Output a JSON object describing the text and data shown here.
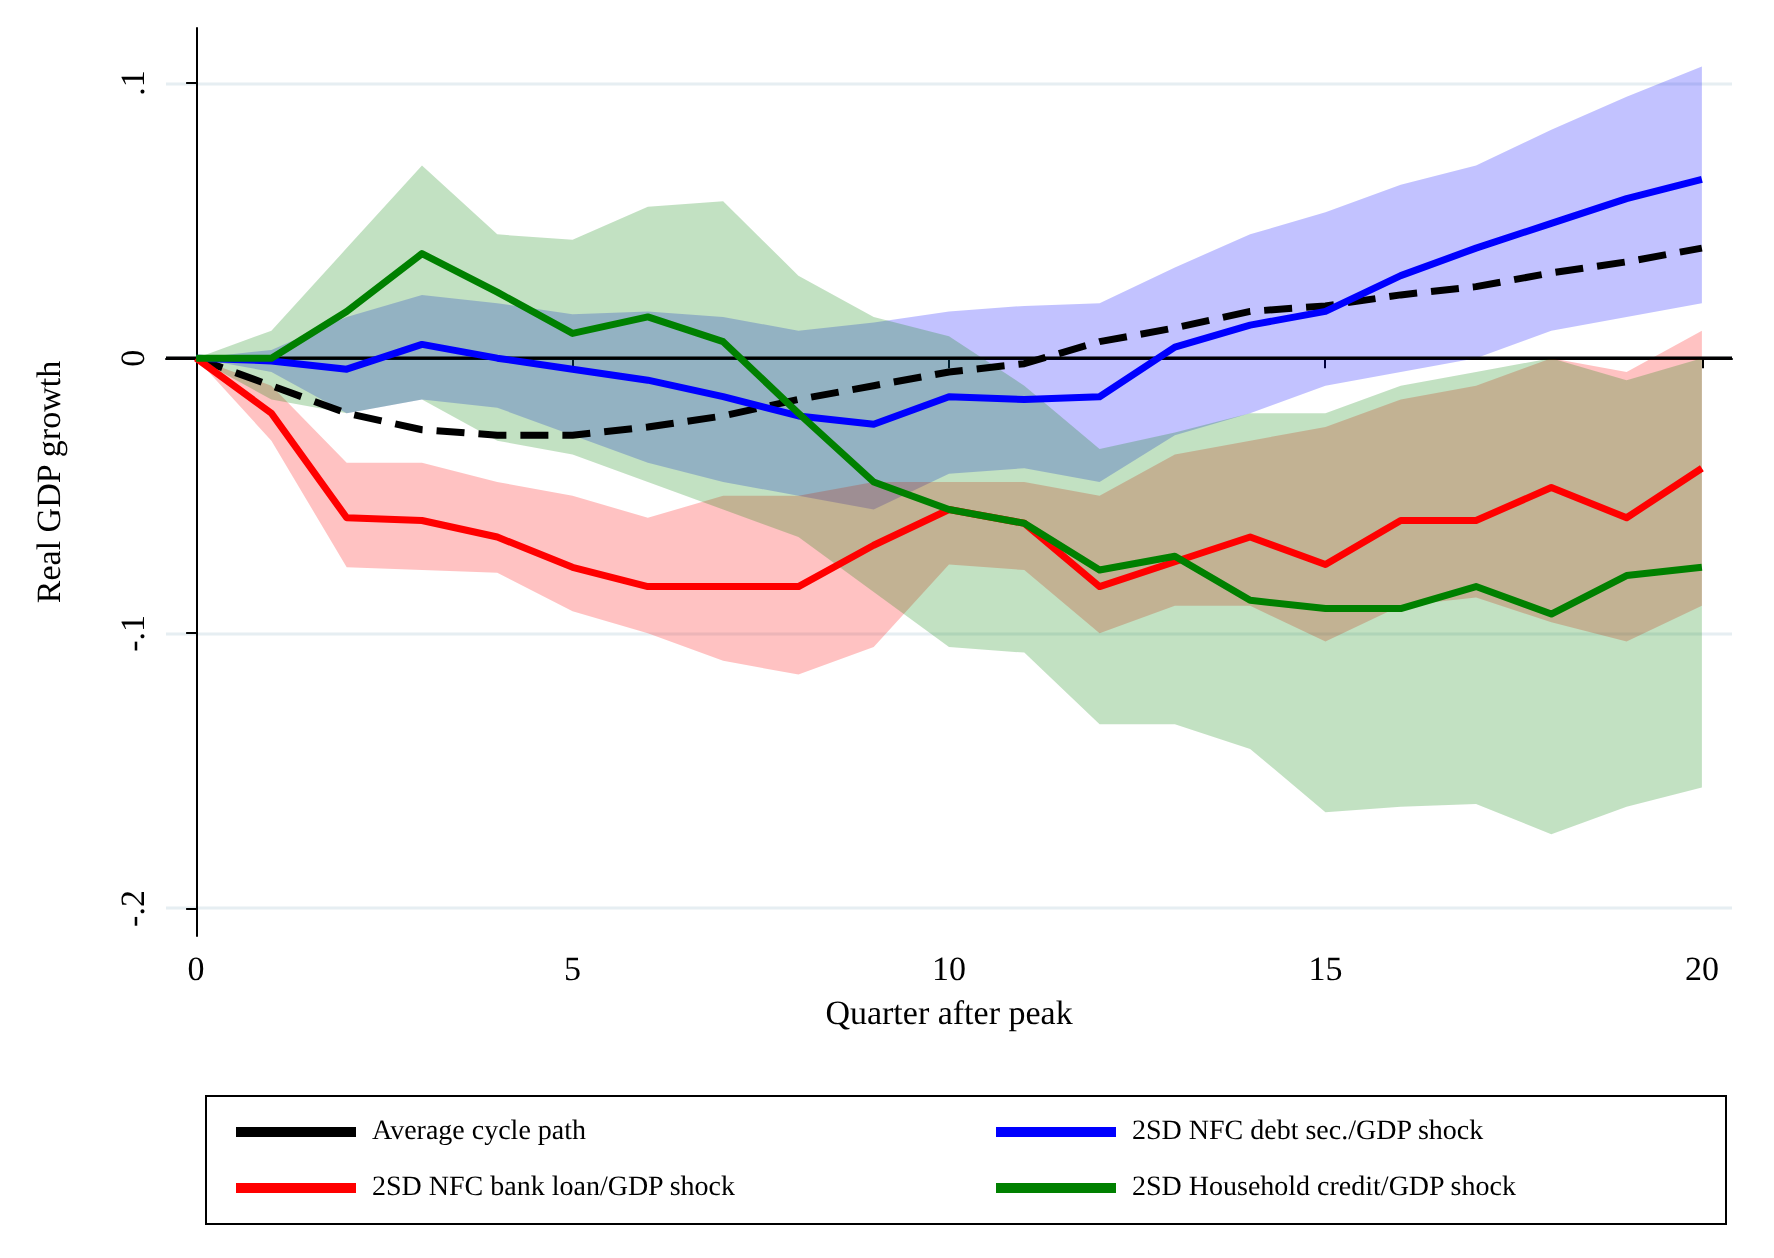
{
  "chart_data": {
    "type": "line",
    "xlabel": "Quarter after peak",
    "ylabel": "Real GDP growth",
    "x": [
      0,
      1,
      2,
      3,
      4,
      5,
      6,
      7,
      8,
      9,
      10,
      11,
      12,
      13,
      14,
      15,
      16,
      17,
      18,
      19,
      20
    ],
    "series": [
      {
        "name": "Average cycle path",
        "color": "#000000",
        "line_style": "dashed",
        "values": [
          0,
          -0.01,
          -0.02,
          -0.026,
          -0.028,
          -0.028,
          -0.025,
          -0.021,
          -0.015,
          -0.01,
          -0.005,
          -0.002,
          0.006,
          0.011,
          0.017,
          0.019,
          0.023,
          0.026,
          0.031,
          0.035,
          0.04
        ]
      },
      {
        "name": "2SD NFC debt sec./GDP shock",
        "color": "#0000ff",
        "values": [
          0,
          -0.001,
          -0.004,
          0.005,
          0,
          -0.004,
          -0.008,
          -0.014,
          -0.021,
          -0.024,
          -0.014,
          -0.015,
          -0.014,
          0.004,
          0.012,
          0.017,
          0.03,
          0.04,
          0.049,
          0.058,
          0.065
        ],
        "upper": [
          0,
          0.003,
          0.015,
          0.023,
          0.02,
          0.016,
          0.017,
          0.015,
          0.01,
          0.013,
          0.017,
          0.019,
          0.02,
          0.033,
          0.045,
          0.053,
          0.063,
          0.07,
          0.083,
          0.095,
          0.106
        ],
        "lower": [
          0,
          -0.005,
          -0.02,
          -0.015,
          -0.018,
          -0.028,
          -0.038,
          -0.045,
          -0.05,
          -0.055,
          -0.042,
          -0.04,
          -0.045,
          -0.028,
          -0.02,
          -0.01,
          -0.005,
          0,
          0.01,
          0.015,
          0.02
        ]
      },
      {
        "name": "2SD NFC bank loan/GDP shock",
        "color": "#ff0000",
        "values": [
          0,
          -0.02,
          -0.058,
          -0.059,
          -0.065,
          -0.076,
          -0.083,
          -0.083,
          -0.083,
          -0.068,
          -0.055,
          -0.06,
          -0.083,
          -0.074,
          -0.065,
          -0.075,
          -0.059,
          -0.059,
          -0.047,
          -0.058,
          -0.04
        ],
        "upper": [
          0,
          -0.01,
          -0.038,
          -0.038,
          -0.045,
          -0.05,
          -0.058,
          -0.05,
          -0.05,
          -0.045,
          -0.045,
          -0.045,
          -0.05,
          -0.035,
          -0.03,
          -0.025,
          -0.015,
          -0.01,
          0,
          -0.005,
          0.01
        ],
        "lower": [
          0,
          -0.03,
          -0.076,
          -0.077,
          -0.078,
          -0.092,
          -0.1,
          -0.11,
          -0.115,
          -0.105,
          -0.075,
          -0.077,
          -0.1,
          -0.09,
          -0.09,
          -0.103,
          -0.09,
          -0.087,
          -0.096,
          -0.103,
          -0.09
        ]
      },
      {
        "name": "2SD Household credit/GDP shock",
        "color": "#008000",
        "values": [
          0,
          0,
          0.017,
          0.038,
          0.024,
          0.009,
          0.015,
          0.006,
          -0.02,
          -0.045,
          -0.055,
          -0.06,
          -0.077,
          -0.072,
          -0.088,
          -0.091,
          -0.091,
          -0.083,
          -0.093,
          -0.079,
          -0.076
        ],
        "upper": [
          0,
          0.01,
          0.04,
          0.07,
          0.045,
          0.043,
          0.055,
          0.057,
          0.03,
          0.015,
          0.008,
          -0.01,
          -0.033,
          -0.027,
          -0.02,
          -0.02,
          -0.01,
          -0.005,
          0,
          -0.008,
          0
        ],
        "lower": [
          0,
          -0.015,
          -0.02,
          -0.015,
          -0.03,
          -0.035,
          -0.045,
          -0.055,
          -0.065,
          -0.085,
          -0.105,
          -0.107,
          -0.133,
          -0.133,
          -0.142,
          -0.165,
          -0.163,
          -0.162,
          -0.173,
          -0.163,
          -0.156
        ]
      }
    ],
    "xlim": [
      -0.4,
      20.4
    ],
    "ylim": [
      -0.21,
      0.12
    ],
    "xticks": [
      0,
      5,
      10,
      15,
      20
    ],
    "yticks": [
      {
        "value": 0.1,
        "label": ".1"
      },
      0,
      {
        "value": -0.1,
        "label": "-.1"
      },
      {
        "value": -0.2,
        "label": "-.2"
      }
    ],
    "ref_lines": [
      {
        "axis": "y",
        "value": 0,
        "color": "#000000"
      }
    ],
    "grid": "y",
    "legend": "bottom",
    "marker": "none"
  }
}
